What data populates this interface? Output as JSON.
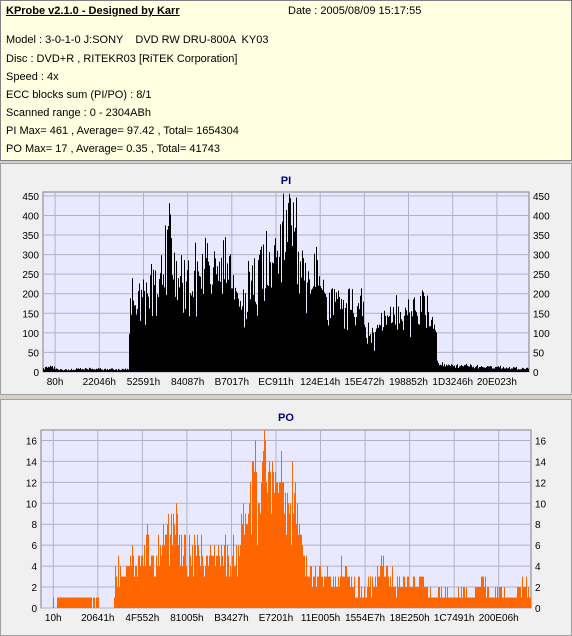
{
  "header": {
    "app_title": "KProbe v2.1.0 - Designed by Karr",
    "date": "Date : 2005/08/09 15:17:55",
    "model": "Model : 3-0-1-0 J:SONY    DVD RW DRU-800A  KY03",
    "disc": "Disc : DVD+R , RITEKR03 [RiTEK Corporation]",
    "speed": "Speed : 4x",
    "ecc": "ECC blocks sum (PI/PO) : 8/1",
    "scanned_range": "Scanned range : 0 - 2304ABh",
    "pi_stats": "PI Max= 461 , Average= 97.42 , Total= 1654304",
    "po_stats": "PO Max= 17 , Average= 0.35 , Total= 41743"
  },
  "colors": {
    "pi_bars": "#000000",
    "po_bars": "#ff6600",
    "plot_bg": "#e8e8ff",
    "title_color": "#000080"
  },
  "chart_data": [
    {
      "type": "bar",
      "title": "PI",
      "x_ticks": [
        "80h",
        "22046h",
        "52591h",
        "84087h",
        "B7017h",
        "EC911h",
        "124E14h",
        "15E472h",
        "198852h",
        "1D3246h",
        "20E023h"
      ],
      "y_ticks": [
        0,
        50,
        100,
        150,
        200,
        250,
        300,
        350,
        400,
        450
      ],
      "ylim": [
        0,
        460
      ],
      "grid": true,
      "envelope": [
        {
          "x": 0.0,
          "y": 10
        },
        {
          "x": 0.015,
          "y": 18
        },
        {
          "x": 0.03,
          "y": 6
        },
        {
          "x": 0.06,
          "y": 8
        },
        {
          "x": 0.1,
          "y": 9
        },
        {
          "x": 0.14,
          "y": 8
        },
        {
          "x": 0.176,
          "y": 8
        },
        {
          "x": 0.178,
          "y": 190
        },
        {
          "x": 0.185,
          "y": 210
        },
        {
          "x": 0.2,
          "y": 195
        },
        {
          "x": 0.215,
          "y": 220
        },
        {
          "x": 0.23,
          "y": 260
        },
        {
          "x": 0.245,
          "y": 300
        },
        {
          "x": 0.255,
          "y": 380
        },
        {
          "x": 0.262,
          "y": 461
        },
        {
          "x": 0.268,
          "y": 300
        },
        {
          "x": 0.28,
          "y": 260
        },
        {
          "x": 0.3,
          "y": 270
        },
        {
          "x": 0.32,
          "y": 300
        },
        {
          "x": 0.34,
          "y": 310
        },
        {
          "x": 0.36,
          "y": 290
        },
        {
          "x": 0.375,
          "y": 300
        },
        {
          "x": 0.39,
          "y": 230
        },
        {
          "x": 0.4,
          "y": 210
        },
        {
          "x": 0.41,
          "y": 230
        },
        {
          "x": 0.43,
          "y": 240
        },
        {
          "x": 0.44,
          "y": 260
        },
        {
          "x": 0.455,
          "y": 305
        },
        {
          "x": 0.465,
          "y": 355
        },
        {
          "x": 0.475,
          "y": 400
        },
        {
          "x": 0.485,
          "y": 455
        },
        {
          "x": 0.49,
          "y": 420
        },
        {
          "x": 0.5,
          "y": 440
        },
        {
          "x": 0.515,
          "y": 420
        },
        {
          "x": 0.525,
          "y": 390
        },
        {
          "x": 0.535,
          "y": 310
        },
        {
          "x": 0.55,
          "y": 250
        },
        {
          "x": 0.565,
          "y": 270
        },
        {
          "x": 0.58,
          "y": 230
        },
        {
          "x": 0.6,
          "y": 195
        },
        {
          "x": 0.62,
          "y": 190
        },
        {
          "x": 0.64,
          "y": 200
        },
        {
          "x": 0.66,
          "y": 185
        },
        {
          "x": 0.665,
          "y": 110
        },
        {
          "x": 0.68,
          "y": 100
        },
        {
          "x": 0.69,
          "y": 125
        },
        {
          "x": 0.7,
          "y": 145
        },
        {
          "x": 0.72,
          "y": 150
        },
        {
          "x": 0.74,
          "y": 175
        },
        {
          "x": 0.76,
          "y": 190
        },
        {
          "x": 0.775,
          "y": 200
        },
        {
          "x": 0.79,
          "y": 180
        },
        {
          "x": 0.8,
          "y": 165
        },
        {
          "x": 0.809,
          "y": 160
        },
        {
          "x": 0.811,
          "y": 22
        },
        {
          "x": 0.83,
          "y": 20
        },
        {
          "x": 0.86,
          "y": 18
        },
        {
          "x": 0.9,
          "y": 16
        },
        {
          "x": 0.94,
          "y": 14
        },
        {
          "x": 0.97,
          "y": 12
        },
        {
          "x": 1.0,
          "y": 10
        }
      ]
    },
    {
      "type": "bar",
      "title": "PO",
      "x_ticks": [
        "10h",
        "20641h",
        "4F552h",
        "81005h",
        "B3427h",
        "E7201h",
        "11E005h",
        "1554E7h",
        "18E250h",
        "1C7491h",
        "200E06h"
      ],
      "y_ticks": [
        0,
        2,
        4,
        6,
        8,
        10,
        12,
        14,
        16
      ],
      "ylim": [
        0,
        17
      ],
      "grid": true,
      "envelope": [
        {
          "x": 0.0,
          "y": 0
        },
        {
          "x": 0.05,
          "y": 1
        },
        {
          "x": 0.1,
          "y": 1
        },
        {
          "x": 0.148,
          "y": 0
        },
        {
          "x": 0.152,
          "y": 5
        },
        {
          "x": 0.17,
          "y": 4
        },
        {
          "x": 0.19,
          "y": 6
        },
        {
          "x": 0.205,
          "y": 5
        },
        {
          "x": 0.215,
          "y": 8
        },
        {
          "x": 0.23,
          "y": 6
        },
        {
          "x": 0.245,
          "y": 7
        },
        {
          "x": 0.26,
          "y": 7
        },
        {
          "x": 0.275,
          "y": 9
        },
        {
          "x": 0.285,
          "y": 6
        },
        {
          "x": 0.3,
          "y": 6
        },
        {
          "x": 0.32,
          "y": 6
        },
        {
          "x": 0.34,
          "y": 5
        },
        {
          "x": 0.36,
          "y": 6
        },
        {
          "x": 0.375,
          "y": 6
        },
        {
          "x": 0.39,
          "y": 5
        },
        {
          "x": 0.405,
          "y": 7
        },
        {
          "x": 0.42,
          "y": 11
        },
        {
          "x": 0.435,
          "y": 14
        },
        {
          "x": 0.445,
          "y": 13
        },
        {
          "x": 0.455,
          "y": 17
        },
        {
          "x": 0.465,
          "y": 14
        },
        {
          "x": 0.48,
          "y": 15
        },
        {
          "x": 0.495,
          "y": 13
        },
        {
          "x": 0.51,
          "y": 12
        },
        {
          "x": 0.52,
          "y": 10
        },
        {
          "x": 0.53,
          "y": 7
        },
        {
          "x": 0.54,
          "y": 5
        },
        {
          "x": 0.56,
          "y": 4
        },
        {
          "x": 0.58,
          "y": 4
        },
        {
          "x": 0.6,
          "y": 3
        },
        {
          "x": 0.62,
          "y": 4
        },
        {
          "x": 0.64,
          "y": 3
        },
        {
          "x": 0.66,
          "y": 2
        },
        {
          "x": 0.68,
          "y": 3
        },
        {
          "x": 0.7,
          "y": 5
        },
        {
          "x": 0.72,
          "y": 3
        },
        {
          "x": 0.74,
          "y": 3
        },
        {
          "x": 0.76,
          "y": 3
        },
        {
          "x": 0.78,
          "y": 3
        },
        {
          "x": 0.785,
          "y": 2
        },
        {
          "x": 0.8,
          "y": 1
        },
        {
          "x": 0.82,
          "y": 2
        },
        {
          "x": 0.84,
          "y": 1
        },
        {
          "x": 0.86,
          "y": 2
        },
        {
          "x": 0.88,
          "y": 1
        },
        {
          "x": 0.89,
          "y": 2
        },
        {
          "x": 0.905,
          "y": 3
        },
        {
          "x": 0.92,
          "y": 1
        },
        {
          "x": 0.94,
          "y": 2
        },
        {
          "x": 0.96,
          "y": 1
        },
        {
          "x": 0.975,
          "y": 2
        },
        {
          "x": 0.985,
          "y": 3
        },
        {
          "x": 1.0,
          "y": 1
        }
      ]
    }
  ]
}
